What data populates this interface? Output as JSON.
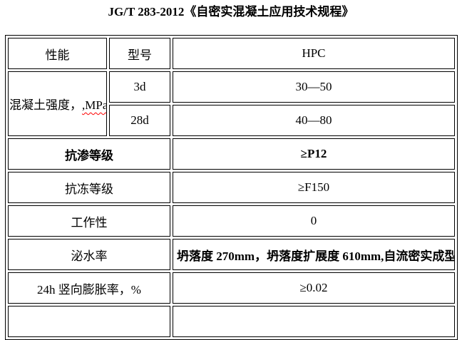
{
  "page": {
    "title": "JG/T 283-2012《自密实混凝土应用技术规程》"
  },
  "table": {
    "header": {
      "property": "性能",
      "model": "型号",
      "value": "HPC"
    },
    "strength": {
      "label": "混凝土强度，",
      "label_suffix": ",MPa",
      "rows": [
        {
          "age": "3d",
          "value": "30—50"
        },
        {
          "age": "28d",
          "value": "40—80"
        }
      ]
    },
    "rows": [
      {
        "label": "抗渗等级",
        "value": "≥P12"
      },
      {
        "label": "抗冻等级",
        "value": "≥F150"
      },
      {
        "label": "工作性",
        "value": "0"
      },
      {
        "label": "泌水率",
        "value": "坍落度 270mm，坍落度扩展度 610mm,自流密实成型"
      },
      {
        "label": "24h 竖向膨胀率，%",
        "value": "≥0.02"
      }
    ]
  },
  "colors": {
    "background": "#ffffff",
    "text": "#000000",
    "border": "#000000",
    "spellcheck_underline": "#ff0000"
  }
}
